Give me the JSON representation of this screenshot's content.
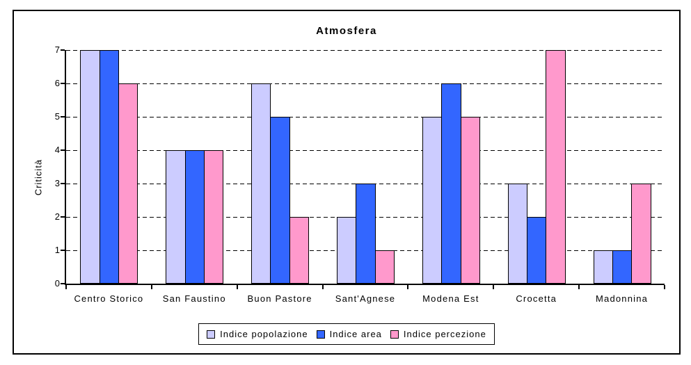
{
  "chart_data": {
    "type": "bar",
    "title": "Atmosfera",
    "xlabel": "",
    "ylabel": "Criticità",
    "ylim": [
      0,
      7
    ],
    "ytick_step": 1,
    "grid": "horizontal-dashed",
    "legend_position": "bottom-center",
    "categories": [
      "Centro Storico",
      "San Faustino",
      "Buon Pastore",
      "Sant'Agnese",
      "Modena Est",
      "Crocetta",
      "Madonnina"
    ],
    "series": [
      {
        "name": "Indice popolazione",
        "color": "#CCCCFF",
        "values": [
          7,
          4,
          6,
          2,
          5,
          3,
          1
        ]
      },
      {
        "name": "Indice area",
        "color": "#3366FF",
        "values": [
          7,
          4,
          5,
          3,
          6,
          2,
          1
        ]
      },
      {
        "name": "Indice percezione",
        "color": "#FF99CC",
        "values": [
          6,
          4,
          2,
          1,
          5,
          7,
          3
        ]
      }
    ]
  },
  "colors": {
    "background": "#FFFFFF",
    "axis": "#000000",
    "bar_border": "#000000",
    "frame_border": "#000000"
  }
}
